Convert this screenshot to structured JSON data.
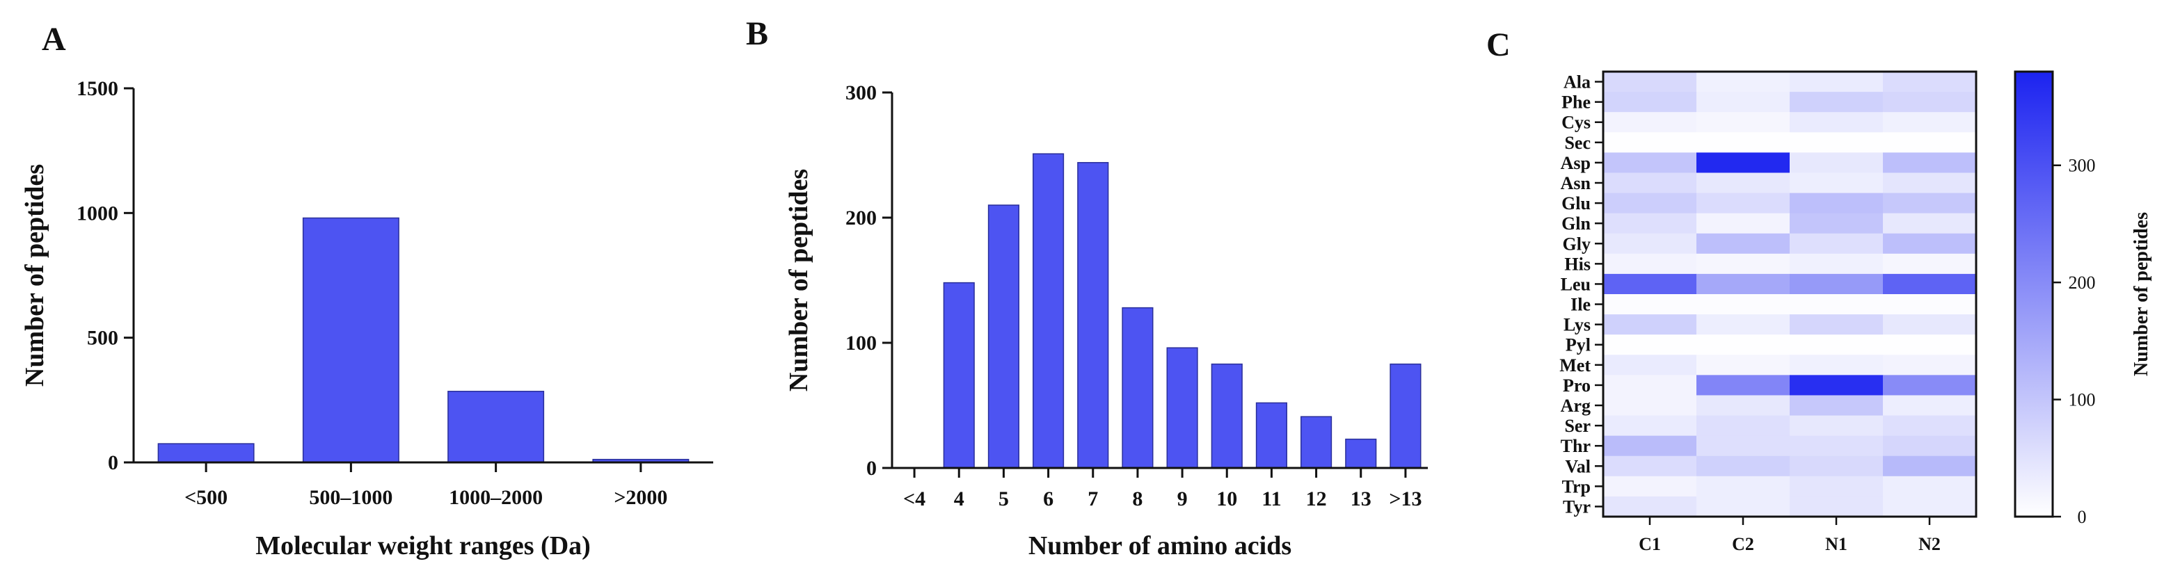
{
  "panels": {
    "a": {
      "letter": "A"
    },
    "b": {
      "letter": "B"
    },
    "c": {
      "letter": "C"
    }
  },
  "chart_data": [
    {
      "type": "bar",
      "panel": "A",
      "xlabel": "Molecular weight ranges (Da)",
      "ylabel": "Number of peptides",
      "ylim": [
        0,
        1500
      ],
      "yticks": [
        0,
        500,
        1000,
        1500
      ],
      "categories": [
        "<500",
        "500–1000",
        "1000–2000",
        ">2000"
      ],
      "values": [
        75,
        980,
        285,
        12
      ],
      "bar_color": "#4d54f2",
      "grid": false
    },
    {
      "type": "bar",
      "panel": "B",
      "xlabel": "Number of amino acids",
      "ylabel": "Number of peptides",
      "ylim": [
        0,
        300
      ],
      "yticks": [
        0,
        100,
        200,
        300
      ],
      "categories": [
        "<4",
        "4",
        "5",
        "6",
        "7",
        "8",
        "9",
        "10",
        "11",
        "12",
        "13",
        ">13"
      ],
      "values": [
        0,
        148,
        210,
        251,
        244,
        128,
        96,
        83,
        52,
        41,
        23,
        83
      ],
      "bar_color": "#4d54f2",
      "grid": false
    },
    {
      "type": "heatmap",
      "panel": "C",
      "columns": [
        "C1",
        "C2",
        "N1",
        "N2"
      ],
      "rows": [
        "Ala",
        "Phe",
        "Cys",
        "Sec",
        "Asp",
        "Asn",
        "Glu",
        "Gln",
        "Gly",
        "His",
        "Leu",
        "Ile",
        "Lys",
        "Pyl",
        "Met",
        "Pro",
        "Arg",
        "Ser",
        "Thr",
        "Val",
        "Trp",
        "Tyr"
      ],
      "values": [
        [
          65,
          25,
          35,
          60
        ],
        [
          75,
          30,
          80,
          70
        ],
        [
          20,
          15,
          35,
          25
        ],
        [
          2,
          2,
          2,
          2
        ],
        [
          100,
          370,
          40,
          110
        ],
        [
          60,
          40,
          30,
          45
        ],
        [
          85,
          60,
          110,
          95
        ],
        [
          55,
          20,
          100,
          40
        ],
        [
          40,
          110,
          55,
          110
        ],
        [
          20,
          15,
          25,
          15
        ],
        [
          270,
          150,
          175,
          270
        ],
        [
          5,
          5,
          5,
          5
        ],
        [
          80,
          30,
          70,
          40
        ],
        [
          2,
          2,
          2,
          2
        ],
        [
          35,
          15,
          25,
          20
        ],
        [
          20,
          210,
          360,
          200
        ],
        [
          20,
          40,
          95,
          30
        ],
        [
          35,
          55,
          40,
          55
        ],
        [
          115,
          55,
          55,
          70
        ],
        [
          60,
          80,
          65,
          120
        ],
        [
          20,
          30,
          45,
          30
        ],
        [
          45,
          30,
          45,
          30
        ]
      ],
      "colorbar": {
        "label": "Number of peptides",
        "range": [
          0,
          380
        ],
        "ticks": [
          0,
          100,
          200,
          300
        ],
        "low_color": "#ffffff",
        "high_color": "#1c23f0"
      }
    }
  ]
}
